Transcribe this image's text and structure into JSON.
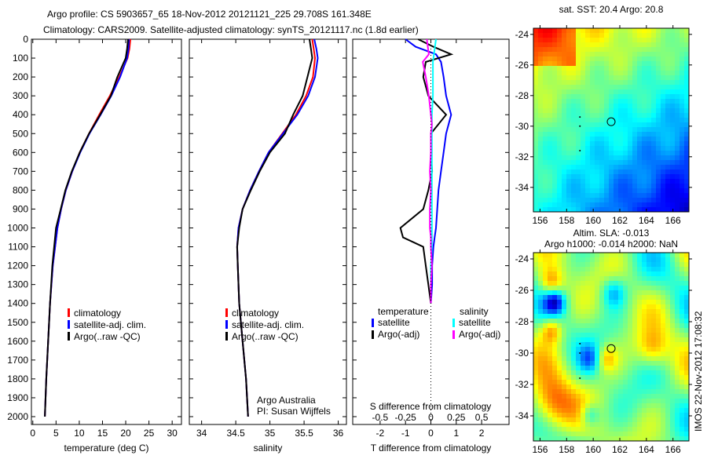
{
  "title_line1": "Argo profile: CS 5903657_65 18-Nov-2012 20121121_225 29.708S 161.348E",
  "title_line2": "Climatology: CARS2009. Satellite-adjusted climatology: synTS_20121117.nc (1.8d earlier)",
  "credit": "IMOS 22-Nov-2012 17:08:32",
  "colors": {
    "climatology": "#ff0000",
    "satellite": "#0000ff",
    "argo": "#000000",
    "sal_satellite": "#00ffff",
    "sal_argo": "#ff00ff"
  },
  "chart_data": [
    {
      "type": "line",
      "name": "temperature",
      "xlabel": "temperature (deg C)",
      "xlim": [
        -0.3,
        32
      ],
      "ylim": [
        2000,
        0
      ],
      "xticks": [
        0,
        5,
        10,
        15,
        20,
        25,
        30
      ],
      "yticks": [
        0,
        100,
        200,
        300,
        400,
        500,
        600,
        700,
        800,
        900,
        1000,
        1100,
        1200,
        1300,
        1400,
        1500,
        1600,
        1700,
        1800,
        1900,
        2000
      ],
      "depth": [
        0,
        50,
        100,
        200,
        300,
        400,
        500,
        600,
        700,
        800,
        900,
        1000,
        1200,
        1400,
        1600,
        1800,
        2000
      ],
      "series": [
        {
          "name": "climatology",
          "color": "#ff0000",
          "values": [
            21.0,
            20.8,
            20.4,
            18.6,
            16.6,
            14.3,
            12.1,
            10.1,
            8.5,
            7.1,
            6.1,
            5.3,
            4.3,
            3.7,
            3.3,
            2.9,
            2.6
          ]
        },
        {
          "name": "satellite-adj. clim.",
          "color": "#0000ff",
          "values": [
            20.7,
            20.6,
            20.3,
            18.8,
            16.9,
            14.6,
            12.2,
            10.2,
            8.5,
            7.1,
            6.1,
            5.3,
            4.3,
            3.7,
            3.3,
            2.9,
            2.6
          ]
        },
        {
          "name": "Argo(..raw -QC)",
          "color": "#000000",
          "values": [
            20.5,
            20.3,
            20.0,
            18.2,
            16.8,
            14.5,
            12.1,
            10.1,
            8.4,
            7.0,
            6.0,
            5.0,
            4.2,
            3.7,
            3.3,
            2.9,
            2.6
          ]
        }
      ],
      "legend": [
        "climatology",
        "satellite-adj. clim.",
        "Argo(..raw -QC)"
      ]
    },
    {
      "type": "line",
      "name": "salinity",
      "xlabel": "salinity",
      "xlim": [
        33.82,
        36.12
      ],
      "ylim": [
        2000,
        0
      ],
      "xticks": [
        34,
        34.5,
        35,
        35.5,
        36
      ],
      "depth": [
        0,
        50,
        100,
        200,
        300,
        400,
        500,
        600,
        700,
        800,
        900,
        1000,
        1100,
        1200,
        1400,
        1600,
        1800,
        2000
      ],
      "series": [
        {
          "name": "climatology",
          "color": "#ff0000",
          "values": [
            35.62,
            35.64,
            35.66,
            35.63,
            35.53,
            35.38,
            35.18,
            34.98,
            34.84,
            34.71,
            34.6,
            34.54,
            34.52,
            34.53,
            34.55,
            34.6,
            34.65,
            34.68
          ]
        },
        {
          "name": "satellite-adj. clim.",
          "color": "#0000ff",
          "values": [
            35.65,
            35.68,
            35.7,
            35.66,
            35.56,
            35.4,
            35.19,
            34.98,
            34.84,
            34.71,
            34.6,
            34.54,
            34.52,
            34.53,
            34.55,
            34.6,
            34.65,
            34.68
          ]
        },
        {
          "name": "Argo(..raw -QC)",
          "color": "#000000",
          "values": [
            35.58,
            35.6,
            35.62,
            35.55,
            35.48,
            35.34,
            35.22,
            35.0,
            34.85,
            34.72,
            34.6,
            34.55,
            34.52,
            34.53,
            34.55,
            34.6,
            34.65,
            34.68
          ]
        }
      ],
      "legend": [
        "climatology",
        "satellite-adj. clim.",
        "Argo(..raw -QC)"
      ],
      "annotation": [
        "Argo Australia",
        "PI: Susan Wijffels"
      ]
    },
    {
      "type": "line",
      "name": "difference",
      "xlabel": "T difference from climatology",
      "xlim": [
        -3.08,
        3.08
      ],
      "xticks": [
        -2,
        -1,
        0,
        1,
        2
      ],
      "s_label": "S difference from climatology",
      "s_ticks": [
        -0.5,
        -0.25,
        0,
        0.25,
        0.5
      ],
      "s_tick_labels": [
        "-0.5",
        "-0.25",
        "0",
        "0.25",
        "0.5"
      ],
      "ylim": [
        2000,
        0
      ],
      "depth": [
        0,
        40,
        80,
        120,
        200,
        300,
        400,
        450,
        500,
        600,
        700,
        800,
        900,
        1000,
        1050,
        1100,
        1200,
        1300,
        1400
      ],
      "series": [
        {
          "name": "temperature satellite",
          "color": "#0000ff",
          "unit": "T",
          "values": [
            -1.0,
            -0.6,
            0.2,
            0.4,
            0.5,
            0.6,
            0.8,
            0.7,
            0.6,
            0.5,
            0.4,
            0.3,
            0.25,
            0.2,
            0.15,
            0.1,
            0.05,
            0.05,
            0
          ]
        },
        {
          "name": "temperature Argo(-adj)",
          "color": "#000000",
          "unit": "T",
          "values": [
            -0.5,
            0.1,
            0.8,
            -0.2,
            -0.3,
            -0.1,
            0.6,
            0.3,
            0.0,
            0.0,
            0.05,
            -0.1,
            -0.3,
            -1.2,
            -1.1,
            -0.3,
            -0.2,
            -0.1,
            0
          ]
        },
        {
          "name": "salinity satellite",
          "color": "#00ffff",
          "unit": "S",
          "values": [
            0.05,
            0.04,
            0.03,
            0.02,
            0.02,
            0.02,
            0.01,
            0.01,
            0.01,
            0.01,
            0.01,
            0.01,
            0.01,
            0.01,
            0.01,
            0.01,
            0.0,
            0.0,
            0.0
          ]
        },
        {
          "name": "salinity Argo(-adj)",
          "color": "#ff00ff",
          "unit": "S",
          "values": [
            -0.04,
            -0.03,
            -0.02,
            -0.08,
            -0.05,
            -0.02,
            0.0,
            0.01,
            0.0,
            0.0,
            -0.01,
            0.0,
            -0.01,
            -0.01,
            0.0,
            0.0,
            0.01,
            0.0,
            0.0
          ]
        }
      ],
      "legend": {
        "temperature_title": "temperature",
        "salinity_title": "salinity",
        "items": [
          "satellite",
          "Argo(-adj)",
          "satellite",
          "Argo(-adj)"
        ]
      }
    },
    {
      "type": "heatmap",
      "name": "sst-map",
      "title": "sat. SST: 20.4  Argo: 20.8",
      "xlim": [
        155.5,
        167.2
      ],
      "ylim": [
        -35.6,
        -23.6
      ],
      "xticks": [
        156,
        158,
        160,
        162,
        164,
        166
      ],
      "yticks": [
        -24,
        -26,
        -28,
        -30,
        -32,
        -34
      ],
      "argo_position": [
        161.35,
        -29.71
      ]
    },
    {
      "type": "heatmap",
      "name": "sla-map",
      "title": "Altim. SLA: -0.013",
      "subtitle": "Argo h1000: -0.014 h2000: NaN",
      "xlim": [
        155.5,
        167.2
      ],
      "ylim": [
        -35.6,
        -23.6
      ],
      "xticks": [
        156,
        158,
        160,
        162,
        164,
        166
      ],
      "yticks": [
        -24,
        -26,
        -28,
        -30,
        -32,
        -34
      ],
      "argo_position": [
        161.35,
        -29.71
      ]
    }
  ]
}
